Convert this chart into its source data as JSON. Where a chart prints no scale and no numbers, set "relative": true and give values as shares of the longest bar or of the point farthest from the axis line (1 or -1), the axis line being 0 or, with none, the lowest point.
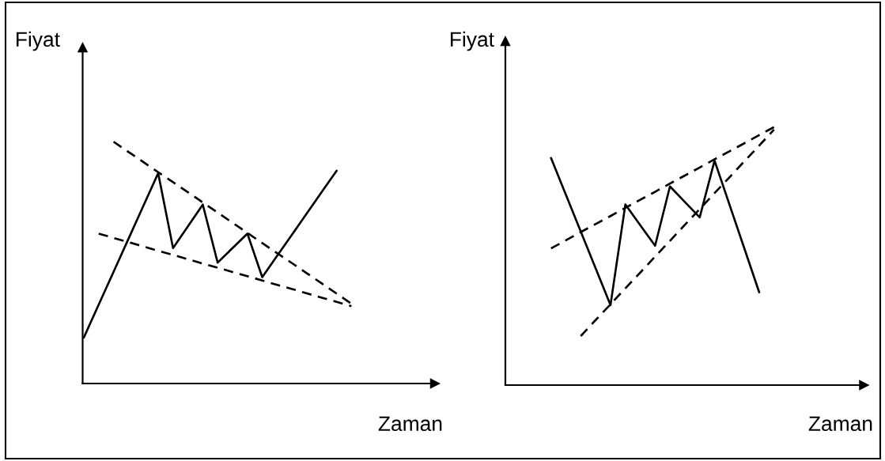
{
  "chart_data": [
    {
      "type": "line",
      "xlabel": "Zaman",
      "ylabel": "Fiyat",
      "relative": true,
      "tick_labels": false,
      "categories": [
        null,
        null,
        null,
        null,
        null,
        null,
        null,
        null,
        null,
        null,
        null,
        null,
        null,
        null,
        null,
        null,
        null,
        null,
        null
      ],
      "series": [
        {
          "color": "#000000",
          "line_style": "solid",
          "values": [
            0.19,
            0.326,
            0.462,
            0.598,
            0.734,
            0.87,
            0.56,
            0.65,
            0.74,
            0.5,
            0.56,
            0.62,
            0.44,
            0.528,
            0.616,
            0.704,
            0.792,
            0.88,
            null
          ]
        },
        {
          "color": "#000000",
          "line_style": "dashed",
          "values": [
            null,
            null,
            1.0,
            0.958,
            0.916,
            0.874,
            0.833,
            0.791,
            0.749,
            0.707,
            0.665,
            0.623,
            0.581,
            0.539,
            0.498,
            0.456,
            0.414,
            0.372,
            0.33
          ]
        },
        {
          "color": "#000000",
          "line_style": "dashed",
          "values": [
            null,
            0.62,
            0.602,
            0.585,
            0.567,
            0.549,
            0.532,
            0.514,
            0.496,
            0.479,
            0.461,
            0.444,
            0.426,
            0.408,
            0.391,
            0.373,
            0.355,
            0.338,
            0.32
          ]
        }
      ]
    },
    {
      "type": "line",
      "xlabel": "Zaman",
      "ylabel": "Fiyat",
      "relative": true,
      "tick_labels": false,
      "categories": [
        null,
        null,
        null,
        null,
        null,
        null,
        null,
        null,
        null,
        null,
        null,
        null,
        null,
        null,
        null,
        null,
        null,
        null,
        null
      ],
      "series": [
        {
          "color": "#000000",
          "line_style": "solid",
          "values": [
            null,
            null,
            null,
            0.88,
            0.738,
            0.595,
            0.453,
            0.31,
            0.7,
            0.62,
            0.54,
            0.77,
            0.71,
            0.65,
            0.87,
            0.7,
            0.53,
            0.36,
            null
          ]
        },
        {
          "color": "#000000",
          "line_style": "dashed",
          "values": [
            null,
            null,
            null,
            0.53,
            0.561,
            0.593,
            0.624,
            0.655,
            0.687,
            0.718,
            0.749,
            0.781,
            0.812,
            0.843,
            0.875,
            0.906,
            0.937,
            0.969,
            1.0
          ]
        },
        {
          "color": "#000000",
          "line_style": "dashed",
          "values": [
            null,
            null,
            null,
            null,
            null,
            0.19,
            0.252,
            0.313,
            0.375,
            0.436,
            0.498,
            0.559,
            0.621,
            0.682,
            0.744,
            0.805,
            0.867,
            0.928,
            0.99
          ]
        }
      ]
    }
  ]
}
